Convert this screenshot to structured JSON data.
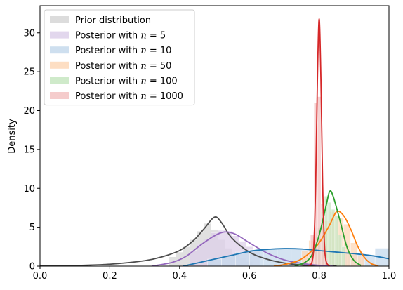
{
  "chart_data": {
    "type": "area",
    "xlabel": "",
    "ylabel": "Density",
    "xlim": [
      0.0,
      1.0
    ],
    "ylim": [
      0,
      33.5
    ],
    "x_ticks": [
      0.0,
      0.2,
      0.4,
      0.6,
      0.8,
      1.0
    ],
    "x_tick_labels": [
      "0.0",
      "0.2",
      "0.4",
      "0.6",
      "0.8",
      "1.0"
    ],
    "y_ticks": [
      0,
      5,
      10,
      15,
      20,
      25,
      30
    ],
    "y_tick_labels": [
      "0",
      "5",
      "10",
      "15",
      "20",
      "25",
      "30"
    ],
    "grid": false,
    "legend_position": "top-left",
    "series": [
      {
        "name": "Prior distribution",
        "label_prefix": "Prior distribution",
        "label_n": "",
        "color": "#4d4d4d",
        "fill": "#d6d6d6",
        "curve": [
          [
            0.0,
            0.02
          ],
          [
            0.1,
            0.08
          ],
          [
            0.2,
            0.25
          ],
          [
            0.3,
            0.7
          ],
          [
            0.35,
            1.2
          ],
          [
            0.4,
            2.0
          ],
          [
            0.44,
            3.3
          ],
          [
            0.47,
            4.8
          ],
          [
            0.5,
            6.3
          ],
          [
            0.52,
            5.6
          ],
          [
            0.55,
            3.6
          ],
          [
            0.6,
            1.8
          ],
          [
            0.65,
            0.9
          ],
          [
            0.7,
            0.4
          ],
          [
            0.75,
            0.15
          ],
          [
            0.8,
            0.05
          ],
          [
            0.85,
            0.02
          ]
        ],
        "bars": [
          [
            0.38,
            1.2
          ],
          [
            0.4,
            1.8
          ],
          [
            0.42,
            2.5
          ],
          [
            0.44,
            3.4
          ],
          [
            0.46,
            4.5
          ],
          [
            0.48,
            5.5
          ],
          [
            0.5,
            4.7
          ],
          [
            0.52,
            3.4
          ],
          [
            0.54,
            2.3
          ],
          [
            0.56,
            1.5
          ],
          [
            0.58,
            1.0
          ],
          [
            0.6,
            0.6
          ]
        ]
      },
      {
        "name": "Posterior with n = 5",
        "label_prefix": "Posterior with ",
        "label_n": "5",
        "color": "#9467bd",
        "fill": "#ddd0ea",
        "curve": [
          [
            0.32,
            0.0
          ],
          [
            0.38,
            0.5
          ],
          [
            0.42,
            1.3
          ],
          [
            0.46,
            2.7
          ],
          [
            0.5,
            3.9
          ],
          [
            0.53,
            4.4
          ],
          [
            0.56,
            4.1
          ],
          [
            0.6,
            3.0
          ],
          [
            0.65,
            1.7
          ],
          [
            0.7,
            0.8
          ],
          [
            0.75,
            0.35
          ],
          [
            0.8,
            0.1
          ],
          [
            0.84,
            0.0
          ]
        ],
        "bars": [
          [
            0.44,
            2.0
          ],
          [
            0.46,
            2.8
          ],
          [
            0.48,
            3.5
          ],
          [
            0.5,
            4.3
          ],
          [
            0.52,
            4.6
          ],
          [
            0.54,
            4.5
          ],
          [
            0.56,
            3.9
          ],
          [
            0.58,
            3.2
          ],
          [
            0.6,
            2.5
          ],
          [
            0.62,
            1.9
          ]
        ]
      },
      {
        "name": "Posterior with n = 10",
        "label_prefix": "Posterior with ",
        "label_n": "10",
        "color": "#1f77b4",
        "fill": "#c5d9ec",
        "curve": [
          [
            0.41,
            0.0
          ],
          [
            0.45,
            0.4
          ],
          [
            0.5,
            0.9
          ],
          [
            0.55,
            1.4
          ],
          [
            0.6,
            1.9
          ],
          [
            0.65,
            2.15
          ],
          [
            0.7,
            2.25
          ],
          [
            0.75,
            2.2
          ],
          [
            0.8,
            2.0
          ],
          [
            0.85,
            1.8
          ],
          [
            0.9,
            1.6
          ],
          [
            0.95,
            1.35
          ],
          [
            1.0,
            0.95
          ]
        ],
        "bars": [
          [
            0.5,
            0.9
          ],
          [
            0.54,
            1.3
          ],
          [
            0.58,
            1.8
          ],
          [
            0.62,
            2.1
          ],
          [
            0.66,
            2.2
          ],
          [
            0.7,
            2.3
          ],
          [
            0.74,
            2.2
          ],
          [
            0.78,
            2.1
          ],
          [
            0.82,
            1.9
          ],
          [
            0.86,
            1.8
          ],
          [
            0.9,
            1.6
          ],
          [
            0.94,
            1.4
          ],
          [
            0.98,
            2.3
          ]
        ]
      },
      {
        "name": "Posterior with n = 50",
        "label_prefix": "Posterior with ",
        "label_n": "50",
        "color": "#ff7f0e",
        "fill": "#fdd8b8",
        "curve": [
          [
            0.67,
            0.0
          ],
          [
            0.7,
            0.2
          ],
          [
            0.74,
            0.7
          ],
          [
            0.77,
            1.6
          ],
          [
            0.8,
            3.0
          ],
          [
            0.83,
            5.3
          ],
          [
            0.85,
            7.0
          ],
          [
            0.87,
            6.5
          ],
          [
            0.89,
            4.8
          ],
          [
            0.91,
            2.6
          ],
          [
            0.93,
            1.1
          ],
          [
            0.95,
            0.3
          ],
          [
            0.97,
            0.05
          ]
        ],
        "bars": [
          [
            0.76,
            2.0
          ],
          [
            0.78,
            3.3
          ],
          [
            0.8,
            4.3
          ],
          [
            0.82,
            5.8
          ],
          [
            0.84,
            7.0
          ],
          [
            0.86,
            6.2
          ],
          [
            0.88,
            5.4
          ],
          [
            0.9,
            3.0
          ],
          [
            0.92,
            1.3
          ]
        ]
      },
      {
        "name": "Posterior with n = 100",
        "label_prefix": "Posterior with ",
        "label_n": "100",
        "color": "#2ca02c",
        "fill": "#c7e6c1",
        "curve": [
          [
            0.73,
            0.0
          ],
          [
            0.76,
            0.5
          ],
          [
            0.78,
            1.5
          ],
          [
            0.8,
            4.0
          ],
          [
            0.82,
            7.8
          ],
          [
            0.83,
            9.6
          ],
          [
            0.84,
            9.0
          ],
          [
            0.86,
            5.8
          ],
          [
            0.88,
            2.4
          ],
          [
            0.9,
            0.7
          ],
          [
            0.92,
            0.1
          ]
        ],
        "bars": [
          [
            0.79,
            2.5
          ],
          [
            0.8,
            5.0
          ],
          [
            0.81,
            7.0
          ],
          [
            0.82,
            9.0
          ],
          [
            0.83,
            8.2
          ],
          [
            0.84,
            7.3
          ],
          [
            0.85,
            6.5
          ],
          [
            0.86,
            4.0
          ],
          [
            0.87,
            2.5
          ]
        ]
      },
      {
        "name": "Posterior with n = 1000",
        "label_prefix": "Posterior with ",
        "label_n": "1000",
        "color": "#d62728",
        "fill": "#f3c3c3",
        "curve": [
          [
            0.77,
            0.0
          ],
          [
            0.78,
            0.6
          ],
          [
            0.785,
            3.0
          ],
          [
            0.79,
            10.5
          ],
          [
            0.795,
            24.0
          ],
          [
            0.8,
            31.8
          ],
          [
            0.805,
            24.0
          ],
          [
            0.81,
            10.5
          ],
          [
            0.815,
            3.0
          ],
          [
            0.82,
            0.6
          ],
          [
            0.83,
            0.0
          ]
        ],
        "bars": [
          [
            0.78,
            4.0
          ],
          [
            0.79,
            21.0
          ],
          [
            0.8,
            21.8
          ],
          [
            0.81,
            8.0
          ],
          [
            0.82,
            1.0
          ]
        ]
      }
    ]
  }
}
